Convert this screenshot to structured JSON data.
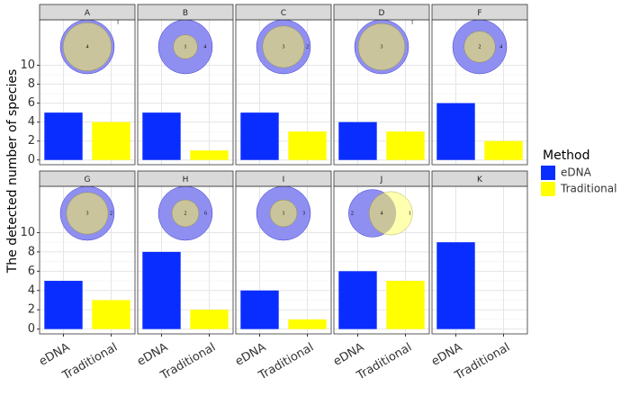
{
  "chart_data": {
    "type": "bar",
    "ylabel": "The detected number of species",
    "legend_title": "Method",
    "categories": [
      "eDNA",
      "Traditional"
    ],
    "colors": [
      "#0a2dff",
      "#ffff00"
    ],
    "ylim": [
      -0.5,
      14.8
    ],
    "yticks": [
      0,
      2,
      4,
      6,
      8,
      10
    ],
    "grid": true,
    "legend": "right",
    "panels": [
      {
        "label": "A",
        "values": [
          5,
          4
        ],
        "venn": [
          1,
          4,
          null
        ]
      },
      {
        "label": "B",
        "values": [
          5,
          1
        ],
        "venn": [
          4,
          1,
          null
        ]
      },
      {
        "label": "C",
        "values": [
          5,
          3
        ],
        "venn": [
          2,
          3,
          null
        ]
      },
      {
        "label": "D",
        "values": [
          4,
          3
        ],
        "venn": [
          1,
          3,
          null
        ]
      },
      {
        "label": "F",
        "values": [
          6,
          2
        ],
        "venn": [
          4,
          2,
          null
        ]
      },
      {
        "label": "G",
        "values": [
          5,
          3
        ],
        "venn": [
          2,
          3,
          null
        ]
      },
      {
        "label": "H",
        "values": [
          8,
          2
        ],
        "venn": [
          6,
          2,
          null
        ]
      },
      {
        "label": "I",
        "values": [
          4,
          1
        ],
        "venn": [
          3,
          1,
          null
        ]
      },
      {
        "label": "J",
        "values": [
          6,
          5
        ],
        "venn": [
          2,
          4,
          1
        ]
      },
      {
        "label": "K",
        "values": [
          9,
          0
        ]
      }
    ]
  }
}
